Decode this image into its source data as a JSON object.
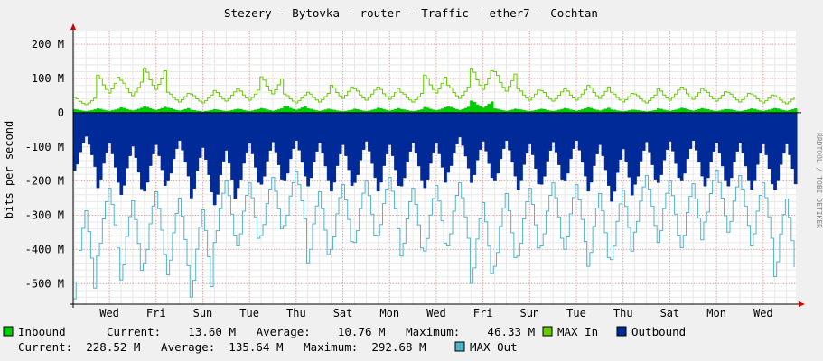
{
  "chart_data": {
    "type": "area",
    "title": "Stezery - Bytovka - router - Traffic - ether7 - Cochtan",
    "ylabel": "bits per second",
    "watermark": "RRDTOOL / TOBI OETIKER",
    "ylim": [
      -560,
      240
    ],
    "y_ticks": [
      "200 M",
      "100 M",
      "0",
      "-100 M",
      "-200 M",
      "-300 M",
      "-400 M",
      "-500 M"
    ],
    "y_tick_values": [
      200,
      100,
      0,
      -100,
      -200,
      -300,
      -400,
      -500
    ],
    "x_ticks": [
      "Wed",
      "Fri",
      "Sun",
      "Tue",
      "Thu",
      "Sat",
      "Mon",
      "Wed",
      "Fri",
      "Sun",
      "Tue",
      "Thu",
      "Sat",
      "Mon",
      "Wed"
    ],
    "x_tick_days": [
      0,
      2,
      4,
      6,
      8,
      10,
      12,
      14,
      16,
      18,
      20,
      22,
      24,
      26,
      28
    ],
    "x_range_days": [
      -1.55,
      29.4
    ],
    "grid": true,
    "series": [
      {
        "name": "Inbound",
        "color": "#00cc00",
        "kind": "area",
        "daily": [
          10,
          12,
          15,
          18,
          14,
          8,
          10,
          11,
          13,
          20,
          12,
          9,
          11,
          14,
          10,
          16,
          18,
          35,
          12,
          10,
          11,
          13,
          15,
          9,
          8,
          12,
          14,
          11,
          10,
          12,
          13
        ]
      },
      {
        "name": "MAX In",
        "color": "#66cc00",
        "kind": "line",
        "daily": [
          45,
          110,
          95,
          130,
          60,
          55,
          65,
          70,
          105,
          55,
          60,
          80,
          70,
          75,
          60,
          110,
          80,
          130,
          120,
          70,
          65,
          70,
          80,
          60,
          55,
          70,
          75,
          65,
          60,
          55,
          50
        ]
      },
      {
        "name": "Outbound",
        "color": "#002a97",
        "kind": "area",
        "daily": [
          170,
          220,
          240,
          230,
          200,
          250,
          270,
          220,
          210,
          200,
          215,
          230,
          205,
          230,
          215,
          220,
          175,
          205,
          200,
          225,
          210,
          200,
          230,
          260,
          210,
          205,
          200,
          215,
          215,
          225,
          225
        ]
      },
      {
        "name": "MAX Out",
        "color": "#50b4c8",
        "kind": "line",
        "daily": [
          545,
          420,
          490,
          440,
          475,
          540,
          380,
          390,
          360,
          330,
          440,
          400,
          380,
          360,
          420,
          405,
          390,
          500,
          450,
          420,
          390,
          400,
          450,
          430,
          350,
          380,
          395,
          320,
          350,
          390,
          480
        ]
      }
    ]
  },
  "legend": {
    "inbound_label": "Inbound",
    "inbound_stats": "Current:    13.60 M   Average:    10.76 M   Maximum:    46.33 M",
    "max_in_label": "MAX In",
    "outbound_label": "Outbound",
    "outbound_stats": "Current:  228.52 M   Average:  135.64 M   Maximum:  292.68 M",
    "max_out_label": "MAX Out",
    "colors": {
      "inbound": "#00cc00",
      "max_in": "#66cc00",
      "outbound": "#002a97",
      "max_out": "#50b4c8"
    }
  }
}
